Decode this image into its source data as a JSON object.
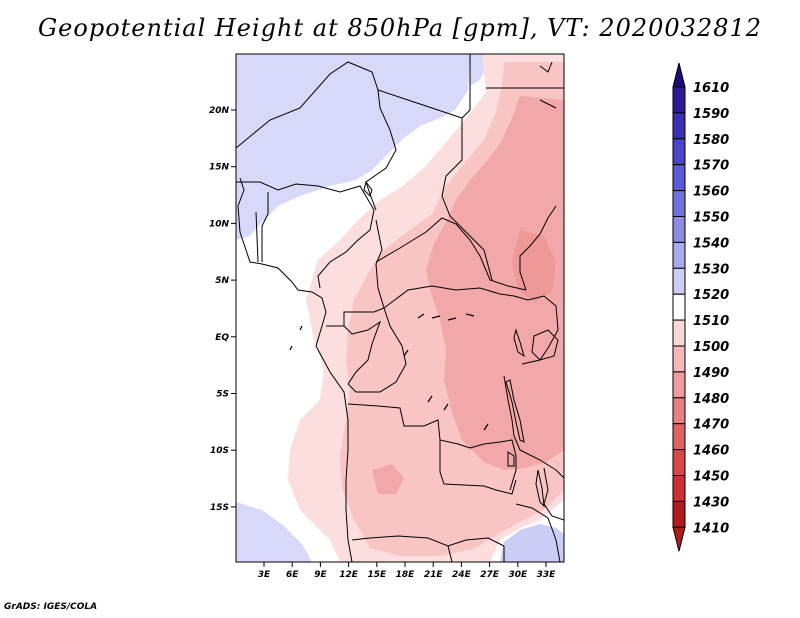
{
  "title": "Geopotential Height at 850hPa [gpm], VT: 2020032812",
  "credit": "GrADS: IGES/COLA",
  "lat_labels": [
    "20N",
    "15N",
    "10N",
    "5N",
    "EQ",
    "5S",
    "10S",
    "15S"
  ],
  "lon_labels": [
    "3E",
    "6E",
    "9E",
    "12E",
    "15E",
    "18E",
    "21E",
    "24E",
    "27E",
    "30E",
    "33E"
  ],
  "colorbar": {
    "levels": [
      "1610",
      "1590",
      "1580",
      "1570",
      "1560",
      "1550",
      "1540",
      "1530",
      "1520",
      "1510",
      "1500",
      "1490",
      "1480",
      "1470",
      "1460",
      "1450",
      "1430",
      "1410"
    ],
    "colors": [
      "#1e0a78",
      "#2c1a9a",
      "#3b2eb4",
      "#4a44c8",
      "#5c5ad4",
      "#7272de",
      "#8c8ce6",
      "#aaaaee",
      "#cccdf4",
      "#ffffff",
      "#fbd8d8",
      "#f6b8b8",
      "#f09c9c",
      "#e88080",
      "#e06262",
      "#d84848",
      "#cc3030",
      "#b01c1c"
    ]
  },
  "palette": {
    "blue_light": "#d8d8f8",
    "blue_mid": "#c4c4f4",
    "white": "#ffffff",
    "pink_light": "#fcdede",
    "pink_mid": "#f8c4c4",
    "pink_deep": "#f2a8a8",
    "pink_strong": "#ee9898"
  }
}
